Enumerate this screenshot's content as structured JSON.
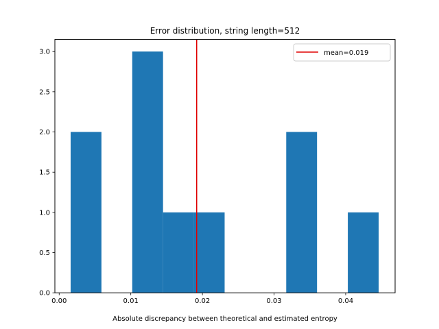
{
  "chart_data": {
    "type": "bar",
    "title": "Error distribution, string length=512",
    "xlabel": "Absolute discrepancy between theoretical and estimated entropy",
    "ylabel": "",
    "xlim": [
      -0.0006,
      0.0469
    ],
    "ylim": [
      0,
      3.15
    ],
    "bins": [
      {
        "x0": 0.0016,
        "x1": 0.0059,
        "count": 2
      },
      {
        "x0": 0.0059,
        "x1": 0.0102,
        "count": 0
      },
      {
        "x0": 0.0102,
        "x1": 0.0145,
        "count": 3
      },
      {
        "x0": 0.0145,
        "x1": 0.0188,
        "count": 1
      },
      {
        "x0": 0.0188,
        "x1": 0.0231,
        "count": 1
      },
      {
        "x0": 0.0231,
        "x1": 0.0274,
        "count": 0
      },
      {
        "x0": 0.0274,
        "x1": 0.0317,
        "count": 0
      },
      {
        "x0": 0.0317,
        "x1": 0.036,
        "count": 2
      },
      {
        "x0": 0.036,
        "x1": 0.0403,
        "count": 0
      },
      {
        "x0": 0.0403,
        "x1": 0.0446,
        "count": 1
      }
    ],
    "x_ticks": [
      0.0,
      0.01,
      0.02,
      0.03,
      0.04
    ],
    "x_tick_labels": [
      "0.00",
      "0.01",
      "0.02",
      "0.03",
      "0.04"
    ],
    "y_ticks": [
      0,
      0.5,
      1.0,
      1.5,
      2.0,
      2.5,
      3.0
    ],
    "y_tick_labels": [
      "0.0",
      "0.5",
      "1.0",
      "1.5",
      "2.0",
      "2.5",
      "3.0"
    ],
    "mean_line": {
      "value": 0.0192,
      "color": "#e00000"
    },
    "legend": {
      "label": "mean=0.019",
      "placement": "top-right"
    },
    "bar_color": "#1f77b4",
    "grid": false
  }
}
